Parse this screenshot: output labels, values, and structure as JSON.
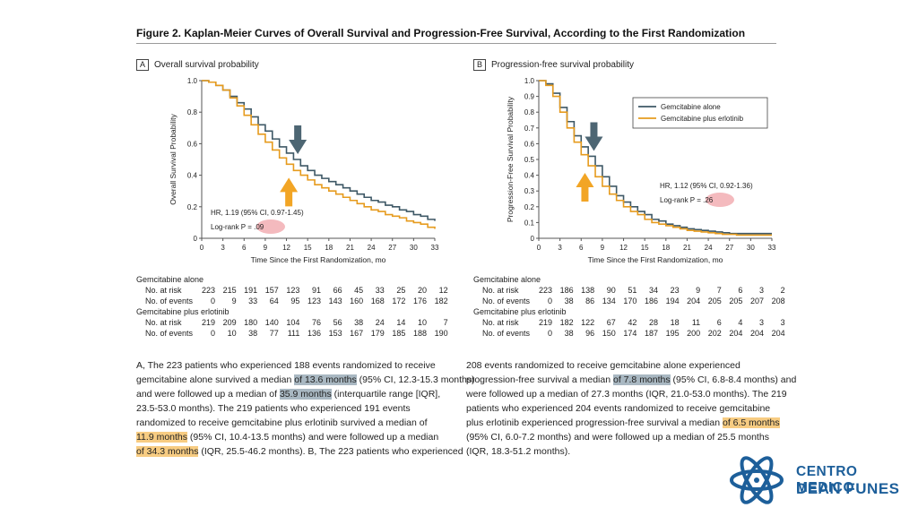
{
  "figure_title": "Figure 2. Kaplan-Meier Curves of Overall Survival and Progression-Free Survival, According to the First Randomization",
  "colors": {
    "gem": "#3e5866",
    "erl": "#e69b1e",
    "hr_marker": "#f0a3a8",
    "arrow_gem": "#4d6673",
    "arrow_erl": "#f2a525"
  },
  "chart_data": [
    {
      "type": "line",
      "panel": "A",
      "title": "Overall survival probability",
      "xlabel": "Time Since the First Randomization, mo",
      "ylabel": "Overall Survival Probability",
      "xlim": [
        0,
        33
      ],
      "ylim": [
        0,
        1.0
      ],
      "xticks": [
        0,
        3,
        6,
        9,
        12,
        15,
        18,
        21,
        24,
        27,
        30,
        33
      ],
      "yticks": [
        0,
        0.2,
        0.4,
        0.6,
        0.8,
        1.0
      ],
      "ytick_labels": [
        "0",
        "0.2",
        "0.4",
        "0.6",
        "0.8",
        "1.0"
      ],
      "annotation_line1": "HR, 1.19 (95% CI, 0.97-1.45)",
      "annotation_line2": "Log-rank P = .09",
      "arrow_x": 13.6,
      "series": [
        {
          "key": "gem",
          "x": [
            0,
            1,
            2,
            3,
            4,
            5,
            6,
            7,
            8,
            9,
            10,
            11,
            12,
            13,
            14,
            15,
            16,
            17,
            18,
            19,
            20,
            21,
            22,
            23,
            24,
            25,
            26,
            27,
            28,
            29,
            30,
            31,
            32,
            33
          ],
          "y": [
            1.0,
            0.99,
            0.97,
            0.94,
            0.9,
            0.86,
            0.82,
            0.77,
            0.72,
            0.68,
            0.63,
            0.58,
            0.54,
            0.5,
            0.46,
            0.43,
            0.4,
            0.38,
            0.36,
            0.34,
            0.32,
            0.3,
            0.28,
            0.26,
            0.24,
            0.23,
            0.21,
            0.2,
            0.18,
            0.17,
            0.15,
            0.14,
            0.12,
            0.11
          ]
        },
        {
          "key": "erl",
          "x": [
            0,
            1,
            2,
            3,
            4,
            5,
            6,
            7,
            8,
            9,
            10,
            11,
            12,
            13,
            14,
            15,
            16,
            17,
            18,
            19,
            20,
            21,
            22,
            23,
            24,
            25,
            26,
            27,
            28,
            29,
            30,
            31,
            32,
            33
          ],
          "y": [
            1.0,
            0.99,
            0.97,
            0.94,
            0.89,
            0.84,
            0.78,
            0.72,
            0.66,
            0.61,
            0.56,
            0.51,
            0.47,
            0.43,
            0.4,
            0.37,
            0.34,
            0.32,
            0.3,
            0.28,
            0.26,
            0.24,
            0.22,
            0.2,
            0.18,
            0.17,
            0.15,
            0.14,
            0.13,
            0.11,
            0.1,
            0.09,
            0.07,
            0.06
          ]
        }
      ]
    },
    {
      "type": "line",
      "panel": "B",
      "title": "Progression-free survival probability",
      "xlabel": "Time Since the First Randomization, mo",
      "ylabel": "Progression-Free Survival Probability",
      "xlim": [
        0,
        33
      ],
      "ylim": [
        0,
        1.0
      ],
      "xticks": [
        0,
        3,
        6,
        9,
        12,
        15,
        18,
        21,
        24,
        27,
        30,
        33
      ],
      "yticks": [
        0,
        0.1,
        0.2,
        0.3,
        0.4,
        0.5,
        0.6,
        0.7,
        0.8,
        0.9,
        1.0
      ],
      "ytick_labels": [
        "0",
        "0.1",
        "0.2",
        "0.3",
        "0.4",
        "0.5",
        "0.6",
        "0.7",
        "0.8",
        "0.9",
        "1.0"
      ],
      "annotation_line1": "HR, 1.12 (95% CI, 0.92-1.36)",
      "annotation_line2": "Log-rank P = .26",
      "legend_position": "top-right",
      "arrow_x": 7.8,
      "series": [
        {
          "key": "gem",
          "name": "Gemcitabine alone",
          "x": [
            0,
            1,
            2,
            3,
            4,
            5,
            6,
            7,
            8,
            9,
            10,
            11,
            12,
            13,
            14,
            15,
            16,
            17,
            18,
            19,
            20,
            21,
            22,
            23,
            24,
            25,
            26,
            27,
            28,
            29,
            30,
            31,
            32,
            33
          ],
          "y": [
            1.0,
            0.98,
            0.92,
            0.83,
            0.74,
            0.65,
            0.58,
            0.52,
            0.46,
            0.39,
            0.33,
            0.27,
            0.23,
            0.2,
            0.17,
            0.15,
            0.12,
            0.11,
            0.09,
            0.08,
            0.07,
            0.06,
            0.055,
            0.05,
            0.045,
            0.04,
            0.035,
            0.03,
            0.03,
            0.03,
            0.03,
            0.03,
            0.03,
            0.03
          ]
        },
        {
          "key": "erl",
          "name": "Gemcitabine plus erlotinib",
          "x": [
            0,
            1,
            2,
            3,
            4,
            5,
            6,
            7,
            8,
            9,
            10,
            11,
            12,
            13,
            14,
            15,
            16,
            17,
            18,
            19,
            20,
            21,
            22,
            23,
            24,
            25,
            26,
            27,
            28,
            29,
            30,
            31,
            32,
            33
          ],
          "y": [
            1.0,
            0.97,
            0.9,
            0.8,
            0.7,
            0.61,
            0.53,
            0.46,
            0.39,
            0.33,
            0.28,
            0.24,
            0.2,
            0.17,
            0.15,
            0.12,
            0.1,
            0.09,
            0.08,
            0.07,
            0.06,
            0.05,
            0.045,
            0.04,
            0.035,
            0.03,
            0.025,
            0.025,
            0.02,
            0.02,
            0.02,
            0.02,
            0.02,
            0.02
          ]
        }
      ]
    }
  ],
  "risk_tables": [
    {
      "group1_title": "Gemcitabine alone",
      "group2_title": "Gemcitabine plus erlotinib",
      "risk_label": "No. at risk",
      "events_label": "No. of events",
      "g1_risk": [
        "223",
        "215",
        "191",
        "157",
        "123",
        "91",
        "66",
        "45",
        "33",
        "25",
        "20",
        "12"
      ],
      "g1_events": [
        "0",
        "9",
        "33",
        "64",
        "95",
        "123",
        "143",
        "160",
        "168",
        "172",
        "176",
        "182"
      ],
      "g2_risk": [
        "219",
        "209",
        "180",
        "140",
        "104",
        "76",
        "56",
        "38",
        "24",
        "14",
        "10",
        "7"
      ],
      "g2_events": [
        "0",
        "10",
        "38",
        "77",
        "111",
        "136",
        "153",
        "167",
        "179",
        "185",
        "188",
        "190"
      ]
    },
    {
      "group1_title": "Gemcitabine alone",
      "group2_title": "Gemcitabine plus erlotinib",
      "risk_label": "No. at risk",
      "events_label": "No. of events",
      "g1_risk": [
        "223",
        "186",
        "138",
        "90",
        "51",
        "34",
        "23",
        "9",
        "7",
        "6",
        "3",
        "2"
      ],
      "g1_events": [
        "0",
        "38",
        "86",
        "134",
        "170",
        "186",
        "194",
        "204",
        "205",
        "205",
        "207",
        "208"
      ],
      "g2_risk": [
        "219",
        "182",
        "122",
        "67",
        "42",
        "28",
        "18",
        "11",
        "6",
        "4",
        "3",
        "3"
      ],
      "g2_events": [
        "0",
        "38",
        "96",
        "150",
        "174",
        "187",
        "195",
        "200",
        "202",
        "204",
        "204",
        "204"
      ]
    }
  ],
  "caption_left": [
    [
      "A, The 223 patients who experienced 188 events randomized to receive"
    ],
    [
      "gemcitabine alone survived a median ",
      {
        "t": "of 13.6 months",
        "hl": "blue"
      },
      " (95% CI, 12.3-15.3 months)"
    ],
    [
      "and were followed up a median of ",
      {
        "t": "35.9 months",
        "hl": "blue"
      },
      " (interquartile range [IQR],"
    ],
    [
      "23.5-53.0 months). The 219 patients who experienced 191 events"
    ],
    [
      "randomized to receive gemcitabine plus erlotinib survived a median of"
    ],
    [
      {
        "t": "11.9 months",
        "hl": "orange"
      },
      " (95% CI, 10.4-13.5 months) and were followed up a median"
    ],
    [
      {
        "t": "of 34.3 months",
        "hl": "orange"
      },
      " (IQR, 25.5-46.2 months). B, The 223 patients who experienced"
    ]
  ],
  "caption_right": [
    [
      "208 events randomized to receive gemcitabine alone experienced"
    ],
    [
      "progression-free survival a median ",
      {
        "t": "of 7.8 months",
        "hl": "blue"
      },
      " (95% CI, 6.8-8.4 months) and"
    ],
    [
      "were followed up a median of 27.3 months (IQR, 21.0-53.0 months). The 219"
    ],
    [
      "patients who experienced 204 events randomized to receive gemcitabine"
    ],
    [
      "plus erlotinib experienced progression-free survival a median ",
      {
        "t": "of 6.5 months",
        "hl": "orange"
      }
    ],
    [
      "(95% CI, 6.0-7.2 months) and were followed up a median of 25.5 months"
    ],
    [
      "(IQR, 18.3-51.2 months)."
    ]
  ],
  "logo": {
    "line1": "CENTRO MEDICO",
    "line2": "DEAN FUNES",
    "icon": "atom-logo-icon"
  }
}
